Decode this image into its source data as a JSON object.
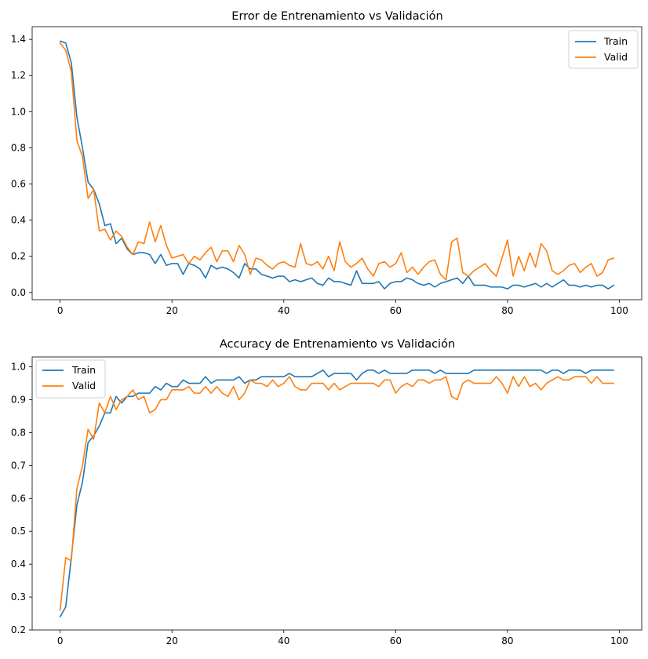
{
  "chart_data": [
    {
      "type": "line",
      "title": "Error de Entrenamiento vs Validación",
      "xlabel": "",
      "ylabel": "",
      "xlim": [
        -5,
        104
      ],
      "ylim": [
        -0.04,
        1.47
      ],
      "xticks": [
        0,
        20,
        40,
        60,
        80,
        100
      ],
      "yticks": [
        0.0,
        0.2,
        0.4,
        0.6,
        0.8,
        1.0,
        1.2,
        1.4
      ],
      "ytick_labels": [
        "0.0",
        "0.2",
        "0.4",
        "0.6",
        "0.8",
        "1.0",
        "1.2",
        "1.4"
      ],
      "legend_position": "top-right",
      "grid": false,
      "series": [
        {
          "name": "Train",
          "color": "#1f77b4",
          "x": [
            0,
            1,
            2,
            3,
            4,
            5,
            6,
            7,
            8,
            9,
            10,
            11,
            12,
            13,
            14,
            15,
            16,
            17,
            18,
            19,
            20,
            21,
            22,
            23,
            24,
            25,
            26,
            27,
            28,
            29,
            30,
            31,
            32,
            33,
            34,
            35,
            36,
            37,
            38,
            39,
            40,
            41,
            42,
            43,
            44,
            45,
            46,
            47,
            48,
            49,
            50,
            51,
            52,
            53,
            54,
            55,
            56,
            57,
            58,
            59,
            60,
            61,
            62,
            63,
            64,
            65,
            66,
            67,
            68,
            69,
            70,
            71,
            72,
            73,
            74,
            75,
            76,
            77,
            78,
            79,
            80,
            81,
            82,
            83,
            84,
            85,
            86,
            87,
            88,
            89,
            90,
            91,
            92,
            93,
            94,
            95,
            96,
            97,
            98,
            99
          ],
          "values": [
            1.39,
            1.38,
            1.27,
            0.97,
            0.8,
            0.61,
            0.57,
            0.49,
            0.37,
            0.38,
            0.27,
            0.3,
            0.24,
            0.21,
            0.22,
            0.22,
            0.21,
            0.16,
            0.21,
            0.15,
            0.16,
            0.16,
            0.1,
            0.16,
            0.15,
            0.13,
            0.08,
            0.15,
            0.13,
            0.14,
            0.13,
            0.11,
            0.08,
            0.16,
            0.13,
            0.13,
            0.1,
            0.09,
            0.08,
            0.09,
            0.09,
            0.06,
            0.07,
            0.06,
            0.07,
            0.08,
            0.05,
            0.04,
            0.08,
            0.06,
            0.06,
            0.05,
            0.04,
            0.12,
            0.05,
            0.05,
            0.05,
            0.06,
            0.02,
            0.05,
            0.06,
            0.06,
            0.08,
            0.07,
            0.05,
            0.04,
            0.05,
            0.03,
            0.05,
            0.06,
            0.07,
            0.08,
            0.05,
            0.09,
            0.04,
            0.04,
            0.04,
            0.03,
            0.03,
            0.03,
            0.02,
            0.04,
            0.04,
            0.03,
            0.04,
            0.05,
            0.03,
            0.05,
            0.03,
            0.05,
            0.07,
            0.04,
            0.04,
            0.03,
            0.04,
            0.03,
            0.04,
            0.04,
            0.02,
            0.04
          ]
        },
        {
          "name": "Valid",
          "color": "#ff7f0e",
          "x": [
            0,
            1,
            2,
            3,
            4,
            5,
            6,
            7,
            8,
            9,
            10,
            11,
            12,
            13,
            14,
            15,
            16,
            17,
            18,
            19,
            20,
            21,
            22,
            23,
            24,
            25,
            26,
            27,
            28,
            29,
            30,
            31,
            32,
            33,
            34,
            35,
            36,
            37,
            38,
            39,
            40,
            41,
            42,
            43,
            44,
            45,
            46,
            47,
            48,
            49,
            50,
            51,
            52,
            53,
            54,
            55,
            56,
            57,
            58,
            59,
            60,
            61,
            62,
            63,
            64,
            65,
            66,
            67,
            68,
            69,
            70,
            71,
            72,
            73,
            74,
            75,
            76,
            77,
            78,
            79,
            80,
            81,
            82,
            83,
            84,
            85,
            86,
            87,
            88,
            89,
            90,
            91,
            92,
            93,
            94,
            95,
            96,
            97,
            98,
            99
          ],
          "values": [
            1.38,
            1.34,
            1.22,
            0.84,
            0.75,
            0.52,
            0.57,
            0.34,
            0.35,
            0.29,
            0.34,
            0.31,
            0.25,
            0.21,
            0.28,
            0.27,
            0.39,
            0.28,
            0.37,
            0.26,
            0.19,
            0.2,
            0.21,
            0.16,
            0.2,
            0.18,
            0.22,
            0.25,
            0.17,
            0.23,
            0.23,
            0.17,
            0.26,
            0.21,
            0.1,
            0.19,
            0.18,
            0.15,
            0.13,
            0.16,
            0.17,
            0.15,
            0.14,
            0.27,
            0.16,
            0.15,
            0.17,
            0.13,
            0.2,
            0.12,
            0.28,
            0.17,
            0.14,
            0.16,
            0.19,
            0.13,
            0.09,
            0.16,
            0.17,
            0.14,
            0.16,
            0.22,
            0.11,
            0.14,
            0.1,
            0.14,
            0.17,
            0.18,
            0.1,
            0.07,
            0.28,
            0.3,
            0.11,
            0.09,
            0.12,
            0.14,
            0.16,
            0.12,
            0.09,
            0.19,
            0.29,
            0.09,
            0.2,
            0.12,
            0.22,
            0.14,
            0.27,
            0.23,
            0.12,
            0.1,
            0.12,
            0.15,
            0.16,
            0.11,
            0.14,
            0.16,
            0.09,
            0.11,
            0.18,
            0.19
          ]
        }
      ]
    },
    {
      "type": "line",
      "title": "Accuracy de Entrenamiento vs Validación",
      "xlabel": "",
      "ylabel": "",
      "xlim": [
        -5,
        104
      ],
      "ylim": [
        0.2,
        1.03
      ],
      "xticks": [
        0,
        20,
        40,
        60,
        80,
        100
      ],
      "yticks": [
        0.2,
        0.3,
        0.4,
        0.5,
        0.6,
        0.7,
        0.8,
        0.9,
        1.0
      ],
      "ytick_labels": [
        "0.2",
        "0.3",
        "0.4",
        "0.5",
        "0.6",
        "0.7",
        "0.8",
        "0.9",
        "1.0"
      ],
      "legend_position": "top-left",
      "grid": false,
      "series": [
        {
          "name": "Train",
          "color": "#1f77b4",
          "x": [
            0,
            1,
            2,
            3,
            4,
            5,
            6,
            7,
            8,
            9,
            10,
            11,
            12,
            13,
            14,
            15,
            16,
            17,
            18,
            19,
            20,
            21,
            22,
            23,
            24,
            25,
            26,
            27,
            28,
            29,
            30,
            31,
            32,
            33,
            34,
            35,
            36,
            37,
            38,
            39,
            40,
            41,
            42,
            43,
            44,
            45,
            46,
            47,
            48,
            49,
            50,
            51,
            52,
            53,
            54,
            55,
            56,
            57,
            58,
            59,
            60,
            61,
            62,
            63,
            64,
            65,
            66,
            67,
            68,
            69,
            70,
            71,
            72,
            73,
            74,
            75,
            76,
            77,
            78,
            79,
            80,
            81,
            82,
            83,
            84,
            85,
            86,
            87,
            88,
            89,
            90,
            91,
            92,
            93,
            94,
            95,
            96,
            97,
            98,
            99
          ],
          "values": [
            0.24,
            0.27,
            0.42,
            0.58,
            0.65,
            0.77,
            0.79,
            0.82,
            0.86,
            0.86,
            0.91,
            0.89,
            0.91,
            0.91,
            0.92,
            0.92,
            0.92,
            0.94,
            0.93,
            0.95,
            0.94,
            0.94,
            0.96,
            0.95,
            0.95,
            0.95,
            0.97,
            0.95,
            0.96,
            0.96,
            0.96,
            0.96,
            0.97,
            0.95,
            0.96,
            0.96,
            0.97,
            0.97,
            0.97,
            0.97,
            0.97,
            0.98,
            0.97,
            0.97,
            0.97,
            0.97,
            0.98,
            0.99,
            0.97,
            0.98,
            0.98,
            0.98,
            0.98,
            0.96,
            0.98,
            0.99,
            0.99,
            0.98,
            0.99,
            0.98,
            0.98,
            0.98,
            0.98,
            0.99,
            0.99,
            0.99,
            0.99,
            0.98,
            0.99,
            0.98,
            0.98,
            0.98,
            0.98,
            0.98,
            0.99,
            0.99,
            0.99,
            0.99,
            0.99,
            0.99,
            0.99,
            0.99,
            0.99,
            0.99,
            0.99,
            0.99,
            0.99,
            0.98,
            0.99,
            0.99,
            0.98,
            0.99,
            0.99,
            0.99,
            0.98,
            0.99,
            0.99,
            0.99,
            0.99,
            0.99
          ]
        },
        {
          "name": "Valid",
          "color": "#ff7f0e",
          "x": [
            0,
            1,
            2,
            3,
            4,
            5,
            6,
            7,
            8,
            9,
            10,
            11,
            12,
            13,
            14,
            15,
            16,
            17,
            18,
            19,
            20,
            21,
            22,
            23,
            24,
            25,
            26,
            27,
            28,
            29,
            30,
            31,
            32,
            33,
            34,
            35,
            36,
            37,
            38,
            39,
            40,
            41,
            42,
            43,
            44,
            45,
            46,
            47,
            48,
            49,
            50,
            51,
            52,
            53,
            54,
            55,
            56,
            57,
            58,
            59,
            60,
            61,
            62,
            63,
            64,
            65,
            66,
            67,
            68,
            69,
            70,
            71,
            72,
            73,
            74,
            75,
            76,
            77,
            78,
            79,
            80,
            81,
            82,
            83,
            84,
            85,
            86,
            87,
            88,
            89,
            90,
            91,
            92,
            93,
            94,
            95,
            96,
            97,
            98,
            99
          ],
          "values": [
            0.26,
            0.42,
            0.41,
            0.63,
            0.7,
            0.81,
            0.78,
            0.89,
            0.86,
            0.91,
            0.87,
            0.9,
            0.91,
            0.93,
            0.9,
            0.91,
            0.86,
            0.87,
            0.9,
            0.9,
            0.93,
            0.93,
            0.93,
            0.94,
            0.92,
            0.92,
            0.94,
            0.92,
            0.94,
            0.92,
            0.91,
            0.94,
            0.9,
            0.92,
            0.96,
            0.95,
            0.95,
            0.94,
            0.96,
            0.94,
            0.95,
            0.97,
            0.94,
            0.93,
            0.93,
            0.95,
            0.95,
            0.95,
            0.93,
            0.95,
            0.93,
            0.94,
            0.95,
            0.95,
            0.95,
            0.95,
            0.95,
            0.94,
            0.96,
            0.96,
            0.92,
            0.94,
            0.95,
            0.94,
            0.96,
            0.96,
            0.95,
            0.96,
            0.96,
            0.97,
            0.91,
            0.9,
            0.95,
            0.96,
            0.95,
            0.95,
            0.95,
            0.95,
            0.97,
            0.95,
            0.92,
            0.97,
            0.94,
            0.97,
            0.94,
            0.95,
            0.93,
            0.95,
            0.96,
            0.97,
            0.96,
            0.96,
            0.97,
            0.97,
            0.97,
            0.95,
            0.97,
            0.95,
            0.95,
            0.95
          ]
        }
      ]
    }
  ]
}
